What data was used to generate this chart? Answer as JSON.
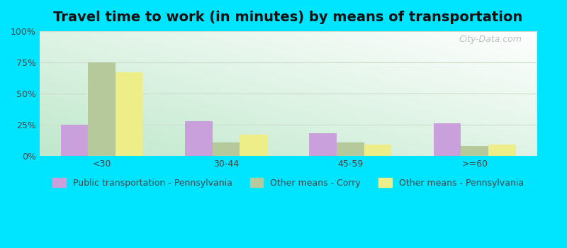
{
  "title": "Travel time to work (in minutes) by means of transportation",
  "categories": [
    "<30",
    "30-44",
    "45-59",
    ">=60"
  ],
  "series": {
    "Public transportation - Pennsylvania": [
      25,
      28,
      18,
      26
    ],
    "Other means - Corry": [
      75,
      11,
      11,
      8
    ],
    "Other means - Pennsylvania": [
      67,
      17,
      9,
      9
    ]
  },
  "colors": {
    "Public transportation - Pennsylvania": "#c9a0dc",
    "Other means - Corry": "#b5c99a",
    "Other means - Pennsylvania": "#eeee88"
  },
  "outer_bg": "#00e5ff",
  "ylim": [
    0,
    100
  ],
  "yticks": [
    0,
    25,
    50,
    75,
    100
  ],
  "ytick_labels": [
    "0%",
    "25%",
    "50%",
    "75%",
    "100%"
  ],
  "title_fontsize": 14,
  "legend_fontsize": 9,
  "tick_fontsize": 9,
  "bar_width": 0.22,
  "watermark": "City-Data.com",
  "grid_color": "#ccddcc"
}
